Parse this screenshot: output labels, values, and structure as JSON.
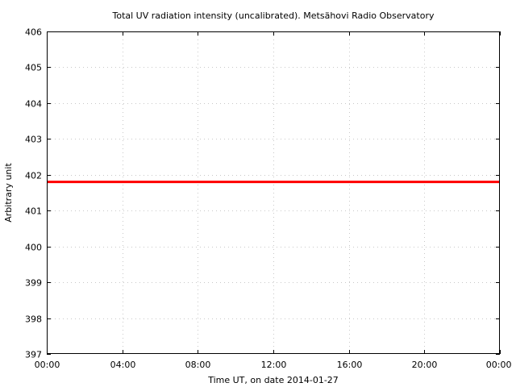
{
  "chart_data": {
    "type": "line",
    "title": "Total UV radiation intensity (uncalibrated). Metsähovi Radio Observatory",
    "xlabel": "Time UT, on date 2014-01-27",
    "ylabel": "Arbitrary unit",
    "x_ticks": [
      "00:00",
      "04:00",
      "08:00",
      "12:00",
      "16:00",
      "20:00",
      "00:00"
    ],
    "xlim_hours": [
      0,
      24
    ],
    "y_ticks": [
      397,
      398,
      399,
      400,
      401,
      402,
      403,
      404,
      405,
      406
    ],
    "ylim": [
      397,
      406
    ],
    "grid": true,
    "series": [
      {
        "color": "#ff0000",
        "x_hours": [
          0,
          24
        ],
        "values": [
          401.8,
          401.8
        ]
      }
    ]
  }
}
